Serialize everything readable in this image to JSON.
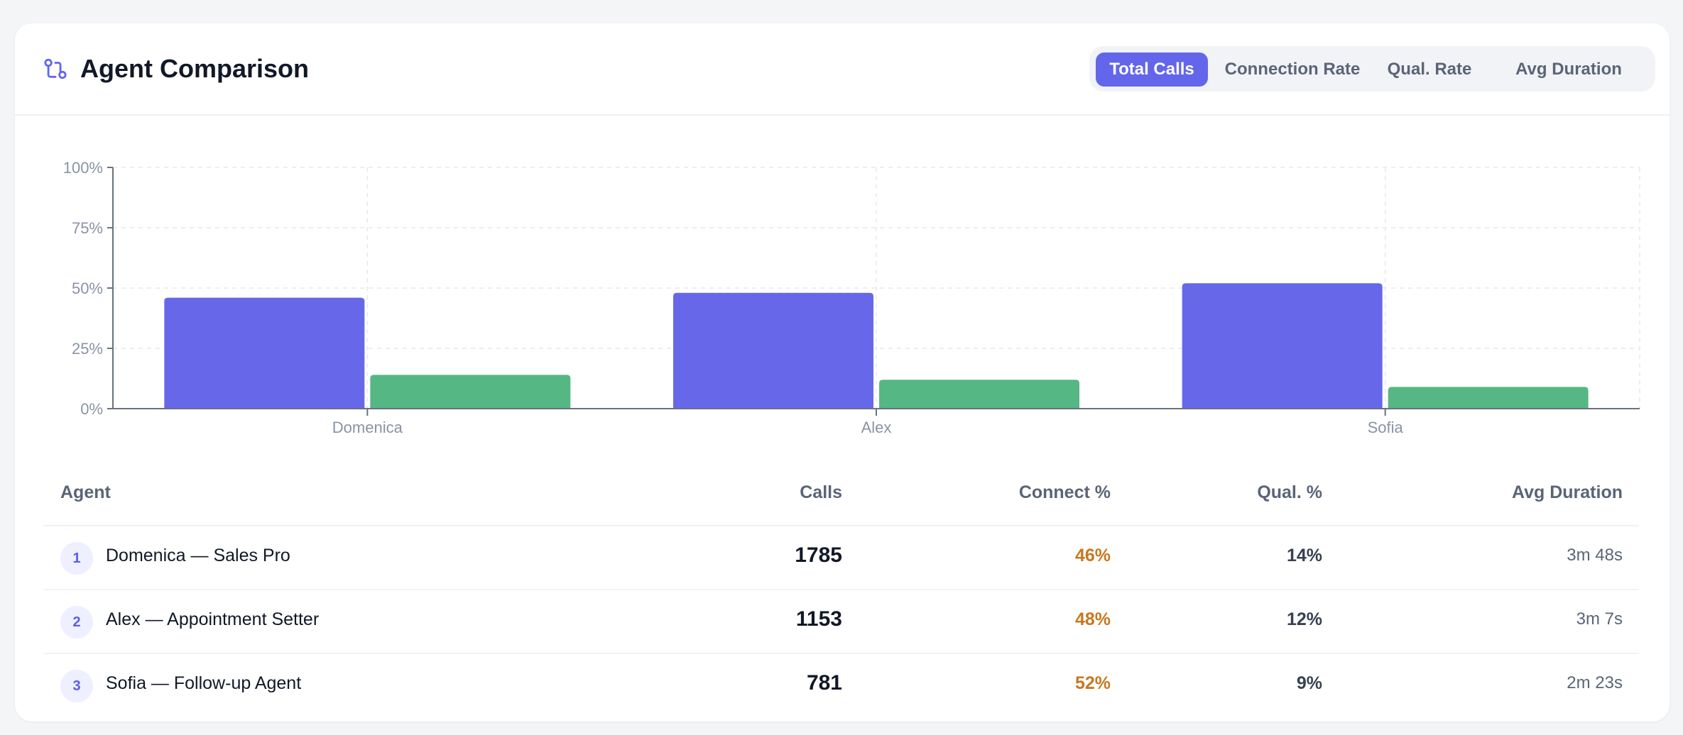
{
  "header": {
    "title": "Agent Comparison",
    "icon": "git-compare-icon",
    "accent": "#6366ea"
  },
  "tabs": [
    {
      "label": "Total Calls",
      "active": true
    },
    {
      "label": "Connection Rate",
      "active": false
    },
    {
      "label": "Qual. Rate",
      "active": false
    },
    {
      "label": "Avg Duration",
      "active": false
    }
  ],
  "chart_data": {
    "type": "bar",
    "categories": [
      "Domenica",
      "Alex",
      "Sofia"
    ],
    "series": [
      {
        "values": [
          46,
          48,
          52
        ],
        "color": "#6668e9"
      },
      {
        "values": [
          14,
          12,
          9
        ],
        "color": "#55b784"
      }
    ],
    "y_ticks": [
      "0%",
      "25%",
      "50%",
      "75%",
      "100%"
    ],
    "ylim": [
      0,
      100
    ],
    "grid": true,
    "legend": "none"
  },
  "table": {
    "columns": [
      "Agent",
      "Calls",
      "Connect %",
      "Qual. %",
      "Avg Duration"
    ],
    "rows": [
      {
        "rank": "1",
        "agent": "Domenica — Sales Pro",
        "calls": "1785",
        "connect": "46%",
        "qual": "14%",
        "duration": "3m 48s"
      },
      {
        "rank": "2",
        "agent": "Alex — Appointment Setter",
        "calls": "1153",
        "connect": "48%",
        "qual": "12%",
        "duration": "3m 7s"
      },
      {
        "rank": "3",
        "agent": "Sofia — Follow-up Agent",
        "calls": "781",
        "connect": "52%",
        "qual": "9%",
        "duration": "2m 23s"
      }
    ]
  }
}
